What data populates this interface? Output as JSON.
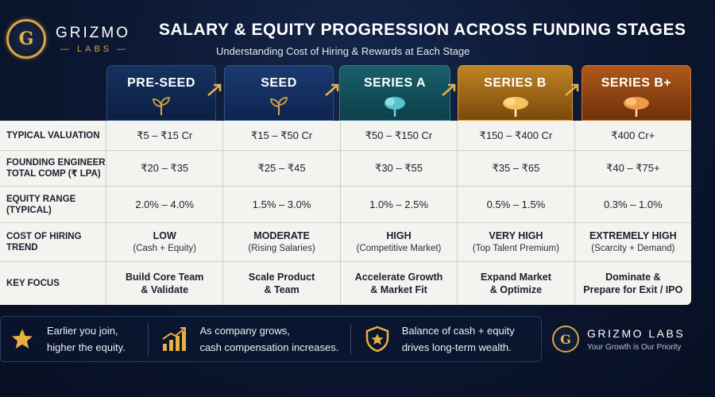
{
  "brand": {
    "logo_letter": "G",
    "name": "GRIZMO",
    "sub": "LABS"
  },
  "title": "SALARY & EQUITY PROGRESSION ACROSS FUNDING STAGES",
  "subtitle": "Understanding Cost of Hiring & Rewards at Each Stage",
  "stages": [
    {
      "label": "PRE-SEED",
      "icon": "sprout-icon",
      "color": "#0f2a52"
    },
    {
      "label": "SEED",
      "icon": "sprout-icon",
      "color": "#123563"
    },
    {
      "label": "SERIES A",
      "icon": "tree-icon",
      "color": "#0f4f5a"
    },
    {
      "label": "SERIES B",
      "icon": "large-tree-icon",
      "color": "#a86a14"
    },
    {
      "label": "SERIES B+",
      "icon": "large-tree-icon",
      "color": "#9a4a12"
    }
  ],
  "rows": [
    {
      "label": "TYPICAL VALUATION",
      "cells": [
        "₹5 – ₹15 Cr",
        "₹15 – ₹50 Cr",
        "₹50 – ₹150 Cr",
        "₹150 – ₹400 Cr",
        "₹400 Cr+"
      ]
    },
    {
      "label": "FOUNDING ENGINEER TOTAL COMP (₹ LPA)",
      "cells": [
        "₹20 – ₹35",
        "₹25 – ₹45",
        "₹30 – ₹55",
        "₹35 – ₹65",
        "₹40 – ₹75+"
      ]
    },
    {
      "label": "EQUITY RANGE (TYPICAL)",
      "cells": [
        "2.0% – 4.0%",
        "1.5% – 3.0%",
        "1.0% – 2.5%",
        "0.5% – 1.5%",
        "0.3% – 1.0%"
      ]
    },
    {
      "label": "COST OF HIRING TREND",
      "cells": [
        {
          "main": "LOW",
          "sub": "(Cash + Equity)"
        },
        {
          "main": "MODERATE",
          "sub": "(Rising Salaries)"
        },
        {
          "main": "HIGH",
          "sub": "(Competitive Market)"
        },
        {
          "main": "VERY HIGH",
          "sub": "(Top Talent Premium)"
        },
        {
          "main": "EXTREMELY HIGH",
          "sub": "(Scarcity + Demand)"
        }
      ]
    },
    {
      "label": "KEY FOCUS",
      "cells": [
        {
          "l1": "Build Core Team",
          "l2": "& Validate"
        },
        {
          "l1": "Scale Product",
          "l2": "& Team"
        },
        {
          "l1": "Accelerate Growth",
          "l2": "& Market Fit"
        },
        {
          "l1": "Expand Market",
          "l2": "& Optimize"
        },
        {
          "l1": "Dominate &",
          "l2": "Prepare for Exit / IPO"
        }
      ]
    }
  ],
  "footer": {
    "items": [
      {
        "icon": "star-icon",
        "l1": "Earlier you join,",
        "l2": "higher the equity."
      },
      {
        "icon": "growth-chart-icon",
        "l1": "As company grows,",
        "l2": "cash compensation increases."
      },
      {
        "icon": "shield-star-icon",
        "l1": "Balance of cash + equity",
        "l2": "drives long-term wealth."
      }
    ],
    "brand_letter": "G",
    "brand_name": "GRIZMO LABS",
    "tagline": "Your Growth is Our Priority"
  }
}
